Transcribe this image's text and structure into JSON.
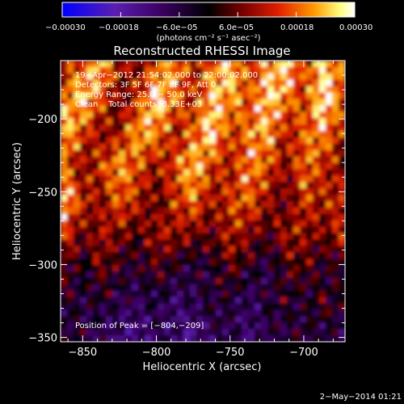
{
  "chart_data": {
    "type": "heatmap",
    "title": "Reconstructed RHESSI Image",
    "xlabel": "Heliocentric X (arcsec)",
    "ylabel": "Heliocentric Y (arcsec)",
    "xlim": [
      -865,
      -672
    ],
    "ylim": [
      -353,
      -160
    ],
    "x_ticks": [
      -850,
      -800,
      -750,
      -700
    ],
    "x_tick_labels": [
      "−850",
      "−800",
      "−750",
      "−700"
    ],
    "y_ticks": [
      -200,
      -250,
      -300,
      -350
    ],
    "y_tick_labels": [
      "−200",
      "−250",
      "−300",
      "−350"
    ],
    "colorbar": {
      "range": [
        -0.0003,
        0.0003
      ],
      "tick_labels": [
        "−0.00030",
        "−0.00018",
        "−6.0e−05",
        "6.0e−05",
        "0.00018",
        "0.00030"
      ],
      "unit": "(photons cm⁻² s⁻¹ asec⁻²)",
      "colors": [
        "#0000ff",
        "#5a1fb0",
        "#3a0060",
        "#000000",
        "#7a0000",
        "#e02000",
        "#ff9900",
        "#ffff80",
        "#ffffff"
      ]
    },
    "annotations": [
      "19−Apr−2012 21:54:02.000 to 22:00:02.000",
      "Detectors: 3F 5F 6F 7F 8F 9F, Att 0",
      "Energy Range: 25.0 − 50.0 keV",
      "Clean    Total counts: 8.33E+03"
    ],
    "peak_label": "Position of Peak = [−804,−209]",
    "peak": [
      -804,
      -209
    ],
    "grid": false,
    "intensity_map": [
      [
        0.3,
        0.55,
        0.8,
        0.35,
        0.2,
        0.5,
        0.75,
        0.3,
        0.6,
        0.85,
        0.4,
        0.7,
        0.9,
        0.45,
        0.8,
        0.6
      ],
      [
        0.6,
        0.85,
        0.55,
        0.1,
        0.4,
        0.95,
        0.6,
        0.35,
        0.8,
        0.7,
        0.5,
        0.85,
        0.65,
        0.4,
        0.95,
        0.55
      ],
      [
        0.8,
        0.5,
        0.2,
        0.3,
        0.75,
        0.65,
        0.3,
        0.55,
        0.9,
        0.4,
        0.6,
        0.75,
        0.3,
        0.55,
        0.7,
        0.35
      ],
      [
        0.55,
        0.2,
        0.45,
        0.7,
        0.5,
        0.25,
        0.5,
        0.8,
        0.45,
        0.3,
        0.7,
        0.5,
        0.2,
        0.6,
        0.4,
        0.2
      ],
      [
        0.85,
        0.4,
        0.2,
        0.55,
        0.35,
        0.1,
        0.4,
        0.6,
        0.25,
        0.45,
        0.55,
        0.25,
        0.1,
        0.45,
        0.3,
        0.45
      ],
      [
        0.45,
        0.1,
        0.3,
        0.2,
        0.05,
        0.3,
        0.25,
        0.15,
        0.1,
        0.35,
        0.2,
        0.05,
        0.3,
        0.25,
        0.15,
        0.35
      ],
      [
        0.1,
        -0.1,
        0.15,
        -0.05,
        -0.1,
        0.05,
        -0.05,
        -0.15,
        -0.1,
        0.1,
        -0.05,
        -0.2,
        0.05,
        0.1,
        -0.1,
        0.0
      ],
      [
        -0.05,
        -0.15,
        -0.1,
        -0.2,
        -0.25,
        -0.15,
        -0.35,
        -0.2,
        -0.1,
        -0.15,
        -0.3,
        -0.1,
        -0.05,
        -0.15,
        0.1,
        -0.1
      ],
      [
        -0.15,
        -0.1,
        -0.25,
        -0.35,
        -0.45,
        -0.25,
        -0.3,
        -0.5,
        -0.25,
        -0.2,
        -0.35,
        -0.2,
        -0.15,
        -0.05,
        -0.2,
        -0.15
      ]
    ]
  }
}
